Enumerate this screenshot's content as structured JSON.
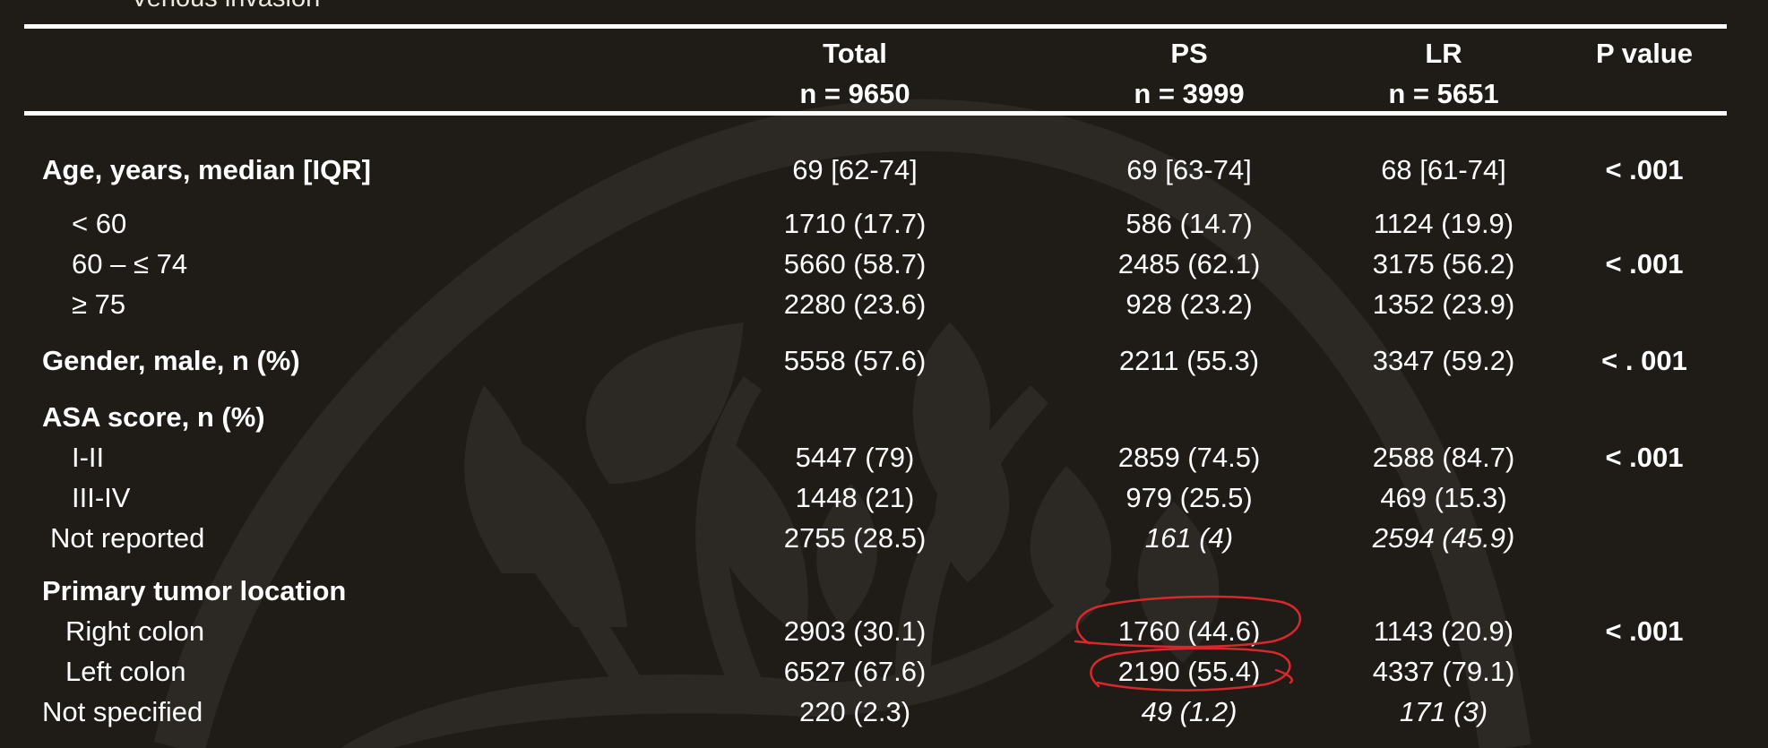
{
  "cut_row_label": "Venous invasion",
  "header": {
    "total": {
      "title": "Total",
      "n": "n = 9650"
    },
    "ps": {
      "title": "PS",
      "n": "n = 3999"
    },
    "lr": {
      "title": "LR",
      "n": "n = 5651"
    },
    "pvalue": {
      "title": "P value"
    }
  },
  "rows": [
    {
      "label": "Age, years, median [IQR]",
      "total": "69 [62-74]",
      "ps": "69 [63-74]",
      "lr": "68 [61-74]",
      "p": "< .001"
    },
    {
      "label": "< 60",
      "total": "1710 (17.7)",
      "ps": "586 (14.7)",
      "lr": "1124 (19.9)",
      "p": ""
    },
    {
      "label": "60 – ≤ 74",
      "total": "5660 (58.7)",
      "ps": "2485 (62.1)",
      "lr": "3175 (56.2)",
      "p": "< .001"
    },
    {
      "label": "≥ 75",
      "total": "2280 (23.6)",
      "ps": "928 (23.2)",
      "lr": "1352 (23.9)",
      "p": ""
    },
    {
      "label": "Gender, male, n (%)",
      "total": "5558 (57.6)",
      "ps": "2211 (55.3)",
      "lr": "3347 (59.2)",
      "p": "< . 001"
    },
    {
      "label": "ASA score, n (%)",
      "total": "",
      "ps": "",
      "lr": "",
      "p": ""
    },
    {
      "label": "I-II",
      "total": "5447 (79)",
      "ps": "2859 (74.5)",
      "lr": "2588 (84.7)",
      "p": "< .001"
    },
    {
      "label": "III-IV",
      "total": "1448 (21)",
      "ps": "979 (25.5)",
      "lr": "469 (15.3)",
      "p": ""
    },
    {
      "label": "Not reported",
      "total": "2755 (28.5)",
      "ps": "161 (4)",
      "lr": "2594 (45.9)",
      "p": ""
    },
    {
      "label": "Primary tumor location",
      "total": "",
      "ps": "",
      "lr": "",
      "p": ""
    },
    {
      "label": "Right colon",
      "total": "2903 (30.1)",
      "ps": "1760 (44.6)",
      "lr": "1143 (20.9)",
      "p": "< .001"
    },
    {
      "label": "Left colon",
      "total": "6527 (67.6)",
      "ps": "2190 (55.4)",
      "lr": "4337 (79.1)",
      "p": ""
    },
    {
      "label": "Not specified",
      "total": "220 (2.3)",
      "ps": "49 (1.2)",
      "lr": "171 (3)",
      "p": ""
    }
  ],
  "colors": {
    "background": "#1f1b16",
    "watermark": "#2c2823",
    "text": "#ffffff",
    "annotation": "#d8282e"
  }
}
